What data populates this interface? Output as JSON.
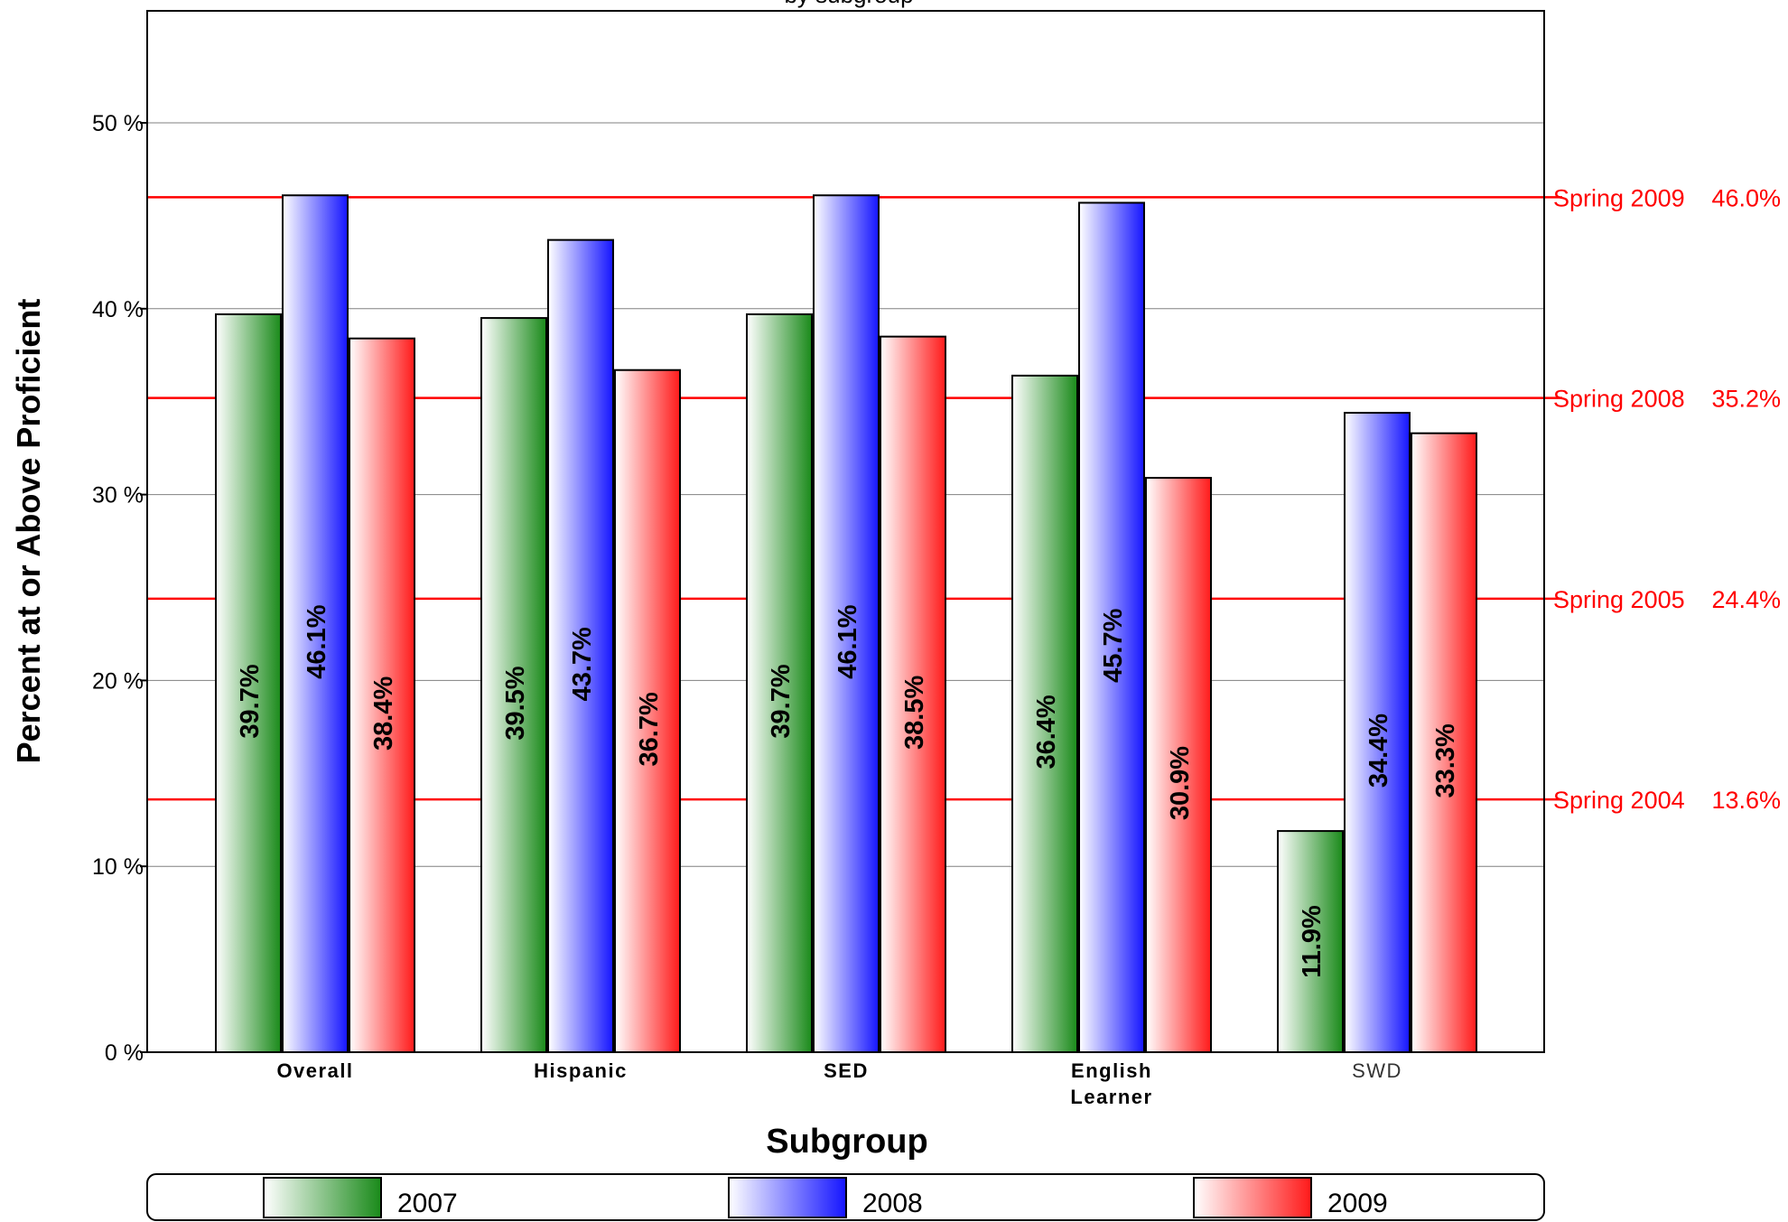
{
  "chart_data": {
    "type": "bar",
    "title": "by subgroup",
    "xlabel": "Subgroup",
    "ylabel": "Percent at or Above Proficient",
    "categories": [
      "Overall",
      "Hispanic",
      "SED",
      "English\nLearner",
      "SWD"
    ],
    "series": [
      {
        "name": "2007",
        "values": [
          39.7,
          39.5,
          39.7,
          36.4,
          11.9
        ],
        "labels": [
          "39.7%",
          "39.5%",
          "39.7%",
          "36.4%",
          "11.9%"
        ],
        "color": "#1a8a1a"
      },
      {
        "name": "2008",
        "values": [
          46.1,
          43.7,
          46.1,
          45.7,
          34.4
        ],
        "labels": [
          "46.1%",
          "43.7%",
          "46.1%",
          "45.7%",
          "34.4%"
        ],
        "color": "#1515ff"
      },
      {
        "name": "2009",
        "values": [
          38.4,
          36.7,
          38.5,
          30.9,
          33.3
        ],
        "labels": [
          "38.4%",
          "36.7%",
          "38.5%",
          "30.9%",
          "33.3%"
        ],
        "color": "#ff1a1a"
      }
    ],
    "ylim": [
      0,
      50
    ],
    "yticks": [
      0,
      10,
      20,
      30,
      40,
      50
    ],
    "ytick_labels": [
      "0 %",
      "10 %",
      "20 %",
      "30 %",
      "40 %",
      "50 %"
    ],
    "reference_lines": [
      {
        "label": "Spring 2009",
        "value": 46.0,
        "value_label": "46.0%"
      },
      {
        "label": "Spring 2008",
        "value": 35.2,
        "value_label": "35.2%"
      },
      {
        "label": "Spring 2005",
        "value": 24.4,
        "value_label": "24.4%"
      },
      {
        "label": "Spring 2004",
        "value": 13.6,
        "value_label": "13.6%"
      }
    ],
    "reference_color": "#ff0000",
    "grid": true,
    "legend_position": "bottom"
  }
}
